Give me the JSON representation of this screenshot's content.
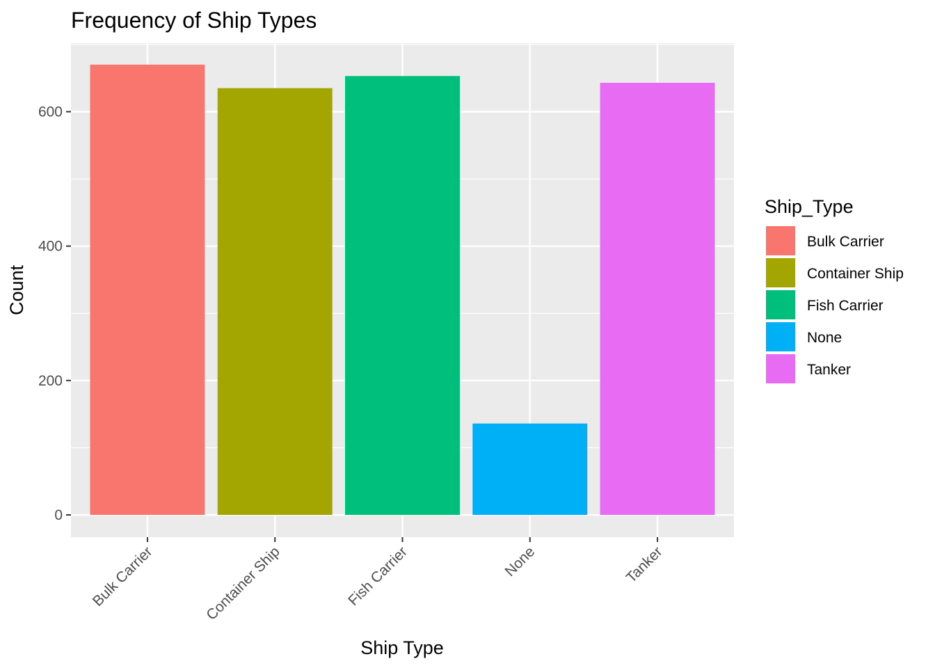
{
  "chart_data": {
    "type": "bar",
    "title": "Frequency of Ship Types",
    "xlabel": "Ship Type",
    "ylabel": "Count",
    "categories": [
      "Bulk Carrier",
      "Container Ship",
      "Fish Carrier",
      "None",
      "Tanker"
    ],
    "values": [
      670,
      635,
      653,
      136,
      643
    ],
    "colors": [
      "#F8766D",
      "#A3A500",
      "#00BF7D",
      "#00B0F6",
      "#E76BF3"
    ],
    "ylim": [
      0,
      700
    ],
    "yticks": [
      0,
      200,
      400,
      600
    ],
    "grid": true,
    "legend": {
      "title": "Ship_Type",
      "position": "right",
      "entries": [
        "Bulk Carrier",
        "Container Ship",
        "Fish Carrier",
        "None",
        "Tanker"
      ]
    }
  }
}
